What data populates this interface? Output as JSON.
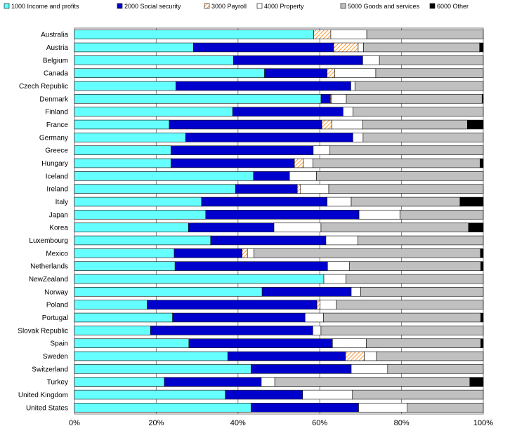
{
  "chart_data": {
    "type": "bar",
    "orientation": "horizontal",
    "stacked": true,
    "percent": true,
    "legend_position": "top",
    "grid": true,
    "xlim": [
      0,
      100
    ],
    "x_ticks": [
      "0%",
      "20%",
      "40%",
      "60%",
      "80%",
      "100%"
    ],
    "categories": [
      "Australia",
      "Austria",
      "Belgium",
      "Canada",
      "Czech Republic",
      "Denmark",
      "Finland",
      "France",
      "Germany",
      "Greece",
      "Hungary",
      "Iceland",
      "Ireland",
      "Italy",
      "Japan",
      "Korea",
      "Luxembourg",
      "Mexico",
      "Netherlands",
      "NewZealand",
      "Norway",
      "Poland",
      "Portugal",
      "Slovak Republic",
      "Spain",
      "Sweden",
      "Switzerland",
      "Turkey",
      "United Kingdom",
      "United States"
    ],
    "series": [
      {
        "name": "1000 Income and profits",
        "color": "#66FFFF",
        "pattern": "solid",
        "values": [
          58.5,
          29.1,
          38.9,
          46.5,
          24.8,
          60.5,
          38.7,
          23.2,
          27.2,
          23.6,
          23.6,
          43.8,
          39.4,
          31.1,
          32.1,
          27.9,
          33.3,
          24.4,
          24.6,
          61.0,
          45.9,
          17.8,
          24.0,
          18.6,
          28.0,
          37.5,
          43.2,
          22.0,
          36.9,
          43.2
        ]
      },
      {
        "name": "2000 Social security",
        "color": "#0000CC",
        "pattern": "solid",
        "values": [
          0,
          34.3,
          31.6,
          15.3,
          42.8,
          2.3,
          27.0,
          37.3,
          40.9,
          34.8,
          30.2,
          8.8,
          15.1,
          30.7,
          37.5,
          20.9,
          28.2,
          16.6,
          37.3,
          0,
          21.8,
          41.5,
          32.4,
          39.7,
          35.1,
          28.8,
          24.5,
          23.7,
          18.9,
          26.3
        ]
      },
      {
        "name": "3000 Payroll",
        "color": "#FF9933",
        "pattern": "hatch",
        "values": [
          4.2,
          6.0,
          0,
          1.9,
          0,
          0.3,
          0,
          2.5,
          0,
          0,
          2.2,
          0,
          0.8,
          0,
          0,
          0,
          0,
          1.3,
          0,
          0,
          0,
          0.8,
          0,
          0,
          0,
          4.6,
          0,
          0,
          0,
          0
        ]
      },
      {
        "name": "4000 Property",
        "color": "#FFFFFF",
        "pattern": "solid",
        "values": [
          8.8,
          1.3,
          4.1,
          10.0,
          1.0,
          3.6,
          2.4,
          7.5,
          2.5,
          4.1,
          2.3,
          6.6,
          6.9,
          5.9,
          10.0,
          11.5,
          7.8,
          1.6,
          5.4,
          5.4,
          2.3,
          4.0,
          4.5,
          2.0,
          8.3,
          3.0,
          8.9,
          3.3,
          12.2,
          11.9
        ]
      },
      {
        "name": "5000 Goods and services",
        "color": "#C0C0C0",
        "pattern": "solid",
        "values": [
          28.5,
          28.4,
          25.4,
          26.3,
          31.4,
          33.3,
          31.9,
          25.6,
          29.4,
          37.5,
          40.9,
          40.8,
          37.8,
          26.6,
          20.4,
          36.1,
          30.7,
          55.4,
          32.1,
          33.6,
          30.0,
          35.9,
          38.5,
          39.7,
          28.0,
          26.1,
          23.4,
          47.7,
          32.0,
          18.6
        ]
      },
      {
        "name": "6000 Other",
        "color": "#000000",
        "pattern": "solid",
        "values": [
          0,
          0.9,
          0,
          0,
          0,
          0.3,
          0,
          3.9,
          0,
          0,
          0.8,
          0,
          0,
          5.7,
          0,
          3.6,
          0,
          0.7,
          0.6,
          0,
          0,
          0,
          0.6,
          0,
          0.6,
          0,
          0,
          3.3,
          0,
          0
        ]
      }
    ]
  }
}
